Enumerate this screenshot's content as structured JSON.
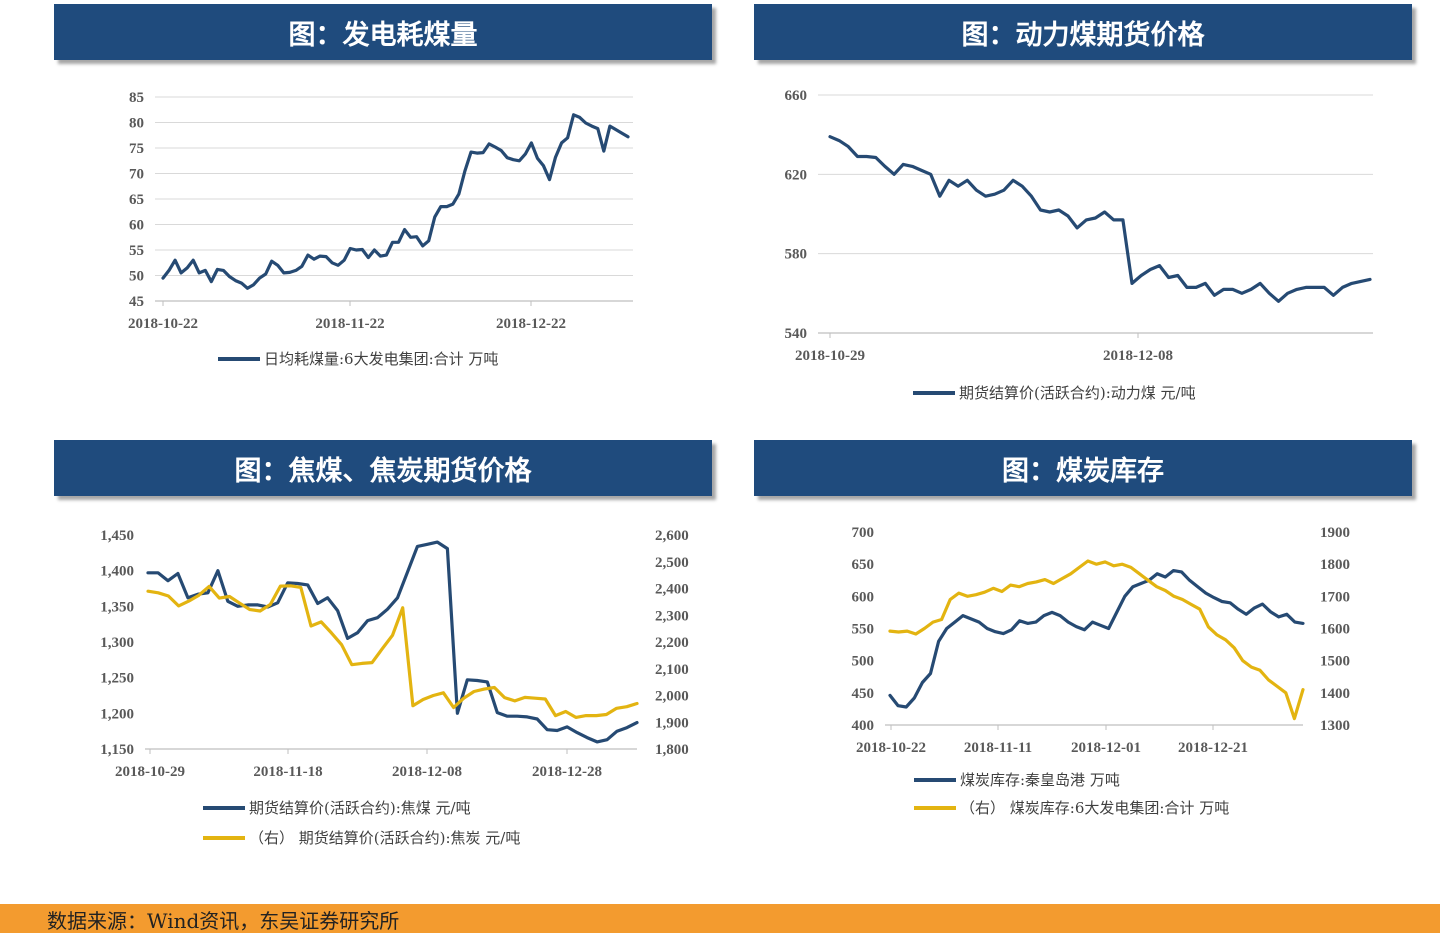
{
  "panels": [
    {
      "title": "图：发电耗煤量",
      "legend": [
        {
          "label": "日均耗煤量:6大发电集团:合计  万吨",
          "color": "#264a73"
        }
      ],
      "chart_data": {
        "type": "line",
        "title": "图：发电耗煤量",
        "xlabel": "",
        "ylabel": "",
        "x_ticks": [
          "2018-10-22",
          "2018-11-22",
          "2018-12-22"
        ],
        "ylim": [
          45,
          85
        ],
        "y_ticks": [
          "45",
          "50",
          "55",
          "60",
          "65",
          "70",
          "75",
          "80",
          "85"
        ],
        "grid": true,
        "legend_position": "bottom",
        "series": [
          {
            "name": "日均耗煤量:6大发电集团:合计  万吨",
            "axis": "left",
            "color": "#264a73",
            "values": [
              49.5,
              51,
              53,
              50.5,
              51.5,
              53,
              50.5,
              51,
              48.8,
              51.2,
              51,
              49.8,
              49,
              48.5,
              47.5,
              48.2,
              49.5,
              50.3,
              52.8,
              52,
              50.5,
              50.6,
              51,
              51.8,
              54,
              53.2,
              53.8,
              53.7,
              52.5,
              52,
              53,
              55.3,
              55,
              55.1,
              53.5,
              55,
              53.8,
              54,
              56.5,
              56.5,
              59,
              57.5,
              57.6,
              55.8,
              56.8,
              61.5,
              63.5,
              63.5,
              64,
              66,
              70.5,
              74.2,
              74,
              74.1,
              75.8,
              75.2,
              74.5,
              73.1,
              72.7,
              72.5,
              73.8,
              76,
              73,
              71.5,
              68.8,
              73.2,
              76,
              77,
              81.5,
              81,
              79.9,
              79.3,
              78.8,
              74.4,
              79.3,
              78.6,
              77.9,
              77.2
            ]
          }
        ]
      }
    },
    {
      "title": "图：动力煤期货价格",
      "legend": [
        {
          "label": "期货结算价(活跃合约):动力煤  元/吨",
          "color": "#264a73"
        }
      ],
      "chart_data": {
        "type": "line",
        "title": "图：动力煤期货价格",
        "xlabel": "",
        "ylabel": "",
        "x_ticks": [
          "2018-10-29",
          "2018-12-08"
        ],
        "ylim": [
          540,
          660
        ],
        "y_ticks": [
          "540",
          "580",
          "620",
          "660"
        ],
        "grid": true,
        "legend_position": "bottom",
        "series": [
          {
            "name": "期货结算价(活跃合约):动力煤  元/吨",
            "axis": "left",
            "color": "#264a73",
            "values": [
              639,
              637,
              634,
              629,
              629,
              628.5,
              624,
              620,
              625,
              624,
              622,
              620,
              609,
              617,
              614,
              617,
              612,
              609,
              610,
              612,
              617,
              614,
              609,
              602,
              601,
              602,
              599,
              593,
              597,
              598,
              601,
              597,
              597,
              565,
              569,
              572,
              574,
              568,
              569,
              563,
              563,
              565,
              559,
              562,
              562,
              560,
              562,
              565,
              560,
              556,
              560,
              562,
              563,
              563,
              563,
              559,
              563,
              565,
              566,
              567
            ]
          }
        ]
      }
    },
    {
      "title": "图：焦煤、焦炭期货价格",
      "legend": [
        {
          "label": "期货结算价(活跃合约):焦煤  元/吨",
          "color": "#264a73"
        },
        {
          "label": "（右） 期货结算价(活跃合约):焦炭  元/吨",
          "color": "#e3b411"
        }
      ],
      "chart_data": {
        "type": "line",
        "title": "图：焦煤、焦炭期货价格",
        "xlabel": "",
        "ylabel": "",
        "x_ticks": [
          "2018-10-29",
          "2018-11-18",
          "2018-12-08",
          "2018-12-28"
        ],
        "ylim": [
          1150,
          1450
        ],
        "y_ticks": [
          "1,150",
          "1,200",
          "1,250",
          "1,300",
          "1,350",
          "1,400",
          "1,450"
        ],
        "y2lim": [
          1800,
          2600
        ],
        "y2_ticks": [
          "1,800",
          "1,900",
          "2,000",
          "2,100",
          "2,200",
          "2,300",
          "2,400",
          "2,500",
          "2,600"
        ],
        "grid": false,
        "legend_position": "bottom",
        "series": [
          {
            "name": "期货结算价(活跃合约):焦煤  元/吨",
            "axis": "left",
            "color": "#264a73",
            "values": [
              1397,
              1397,
              1386,
              1396,
              1362,
              1367,
              1369,
              1400,
              1357,
              1350,
              1352,
              1352,
              1349,
              1355,
              1383,
              1382,
              1380,
              1354,
              1362,
              1344,
              1305,
              1313,
              1330,
              1334,
              1346,
              1362,
              1398,
              1434,
              1437,
              1440,
              1431,
              1200,
              1247,
              1246,
              1244,
              1201,
              1196,
              1196,
              1195,
              1192,
              1177,
              1176,
              1181,
              1173,
              1166,
              1160,
              1163,
              1175,
              1180,
              1187
            ]
          },
          {
            "name": "（右） 期货结算价(活跃合约):焦炭  元/吨",
            "axis": "right",
            "color": "#e3b411",
            "values": [
              2390,
              2384,
              2372,
              2335,
              2353,
              2375,
              2408,
              2364,
              2370,
              2345,
              2321,
              2316,
              2340,
              2409,
              2410,
              2404,
              2260,
              2275,
              2234,
              2190,
              2115,
              2120,
              2123,
              2175,
              2225,
              2328,
              1962,
              1985,
              2000,
              2010,
              1955,
              1990,
              2015,
              2024,
              2030,
              1992,
              1980,
              1993,
              1990,
              1987,
              1925,
              1940,
              1918,
              1925,
              1925,
              1929,
              1952,
              1958,
              1970
            ]
          }
        ]
      }
    },
    {
      "title": "图：煤炭库存",
      "legend": [
        {
          "label": "煤炭库存:秦皇岛港  万吨",
          "color": "#264a73"
        },
        {
          "label": "（右） 煤炭库存:6大发电集团:合计  万吨",
          "color": "#e3b411"
        }
      ],
      "chart_data": {
        "type": "line",
        "title": "图：煤炭库存",
        "xlabel": "",
        "ylabel": "",
        "x_ticks": [
          "2018-10-22",
          "2018-11-11",
          "2018-12-01",
          "2018-12-21"
        ],
        "ylim": [
          400,
          700
        ],
        "y_ticks": [
          "400",
          "450",
          "500",
          "550",
          "600",
          "650",
          "700"
        ],
        "y2lim": [
          1300,
          1900
        ],
        "y2_ticks": [
          "1300",
          "1400",
          "1500",
          "1600",
          "1700",
          "1800",
          "1900"
        ],
        "grid": false,
        "legend_position": "bottom",
        "series": [
          {
            "name": "煤炭库存:秦皇岛港  万吨",
            "axis": "left",
            "color": "#264a73",
            "values": [
              446,
              430,
              428,
              442,
              466,
              480,
              530,
              550,
              560,
              570,
              565,
              560,
              550,
              545,
              542,
              548,
              562,
              558,
              560,
              570,
              575,
              570,
              560,
              553,
              548,
              560,
              555,
              550,
              575,
              600,
              615,
              620,
              625,
              635,
              630,
              640,
              638,
              625,
              615,
              605,
              598,
              592,
              590,
              580,
              572,
              582,
              588,
              576,
              568,
              572,
              560,
              558
            ]
          },
          {
            "name": "（右） 煤炭库存:6大发电集团:合计  万吨",
            "axis": "right",
            "color": "#e3b411",
            "values": [
              1592,
              1589,
              1592,
              1583,
              1600,
              1620,
              1628,
              1690,
              1710,
              1700,
              1705,
              1713,
              1725,
              1715,
              1735,
              1730,
              1740,
              1745,
              1752,
              1740,
              1755,
              1770,
              1790,
              1810,
              1800,
              1807,
              1795,
              1800,
              1790,
              1770,
              1750,
              1730,
              1718,
              1700,
              1690,
              1675,
              1660,
              1605,
              1580,
              1565,
              1540,
              1500,
              1480,
              1470,
              1440,
              1420,
              1400,
              1320,
              1410
            ]
          }
        ]
      }
    }
  ],
  "footer": "数据来源：Wind资讯，东吴证券研究所"
}
